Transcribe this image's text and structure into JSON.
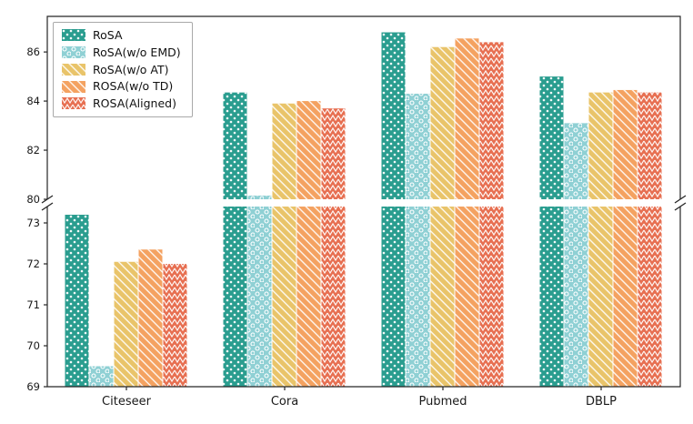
{
  "chart_data": {
    "type": "bar",
    "title": "",
    "xlabel": "",
    "ylabel": "",
    "categories": [
      "Citeseer",
      "Cora",
      "Pubmed",
      "DBLP"
    ],
    "series": [
      {
        "name": "RoSA",
        "color": "#2a9d8f",
        "hatch": "dots",
        "values": [
          73.2,
          84.35,
          86.8,
          85.0
        ]
      },
      {
        "name": "RoSA(w/o EMD)",
        "color": "#8fd0d4",
        "hatch": "rings",
        "values": [
          69.5,
          80.15,
          84.3,
          83.1
        ]
      },
      {
        "name": "RoSA(w/o AT)",
        "color": "#e9c46a",
        "hatch": "diagonal",
        "values": [
          72.05,
          83.9,
          86.2,
          84.35
        ]
      },
      {
        "name": "ROSA(w/o TD)",
        "color": "#f4a261",
        "hatch": "diagonal",
        "values": [
          72.35,
          84.0,
          86.55,
          84.45
        ]
      },
      {
        "name": "ROSA(Aligned)",
        "color": "#e76f51",
        "hatch": "chevron",
        "values": [
          72.0,
          83.7,
          86.4,
          84.35
        ]
      }
    ],
    "y_axis": {
      "broken": true,
      "top_range": [
        80,
        87.45
      ],
      "top_ticks": [
        80,
        82,
        84,
        86
      ],
      "bottom_range": [
        69,
        73.4
      ],
      "bottom_ticks": [
        69,
        70,
        71,
        72,
        73
      ]
    },
    "legend_position": "upper left",
    "grid": false,
    "axis_color": "#262626"
  }
}
